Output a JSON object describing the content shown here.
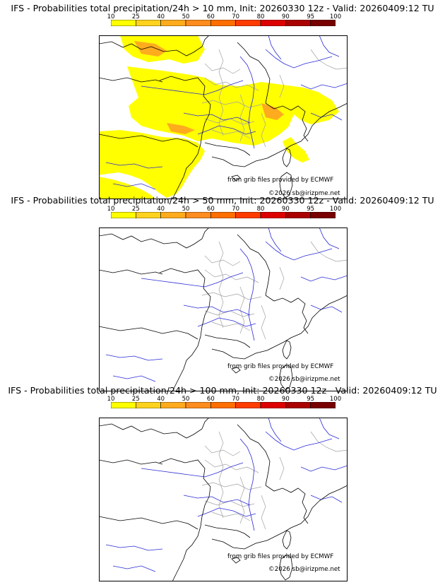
{
  "colorbar": {
    "ticks": [
      "10",
      "25",
      "40",
      "50",
      "60",
      "70",
      "80",
      "90",
      "95",
      "100"
    ],
    "colors": [
      "#ffff00",
      "#ffd21e",
      "#ffab1e",
      "#ff8c1e",
      "#ff6e00",
      "#ff3c00",
      "#dc0000",
      "#aa0000",
      "#780000"
    ]
  },
  "panels": [
    {
      "title": "IFS - Probabilities total precipitation/24h > 10 mm, Init: 20260330 12z - Valid: 20260409:12 TU",
      "credit_source": "from grib files provided by ECMWF",
      "credit_copyright": "©2026 sb@irizpme.net",
      "precip_shading": true
    },
    {
      "title": "IFS - Probabilities total precipitation/24h > 50 mm, Init: 20260330 12z - Valid: 20260409:12 TU",
      "credit_source": "from grib files provided by ECMWF",
      "credit_copyright": "©2026 sb@irizpme.net",
      "precip_shading": false
    },
    {
      "title": "IFS - Probabilities total precipitation/24h > 100 mm, Init: 20260330 12z - Valid: 20260409:12 TU",
      "credit_source": "from grib files provided by ECMWF",
      "credit_copyright": "©2026 sb@irizpme.net",
      "precip_shading": false
    }
  ]
}
